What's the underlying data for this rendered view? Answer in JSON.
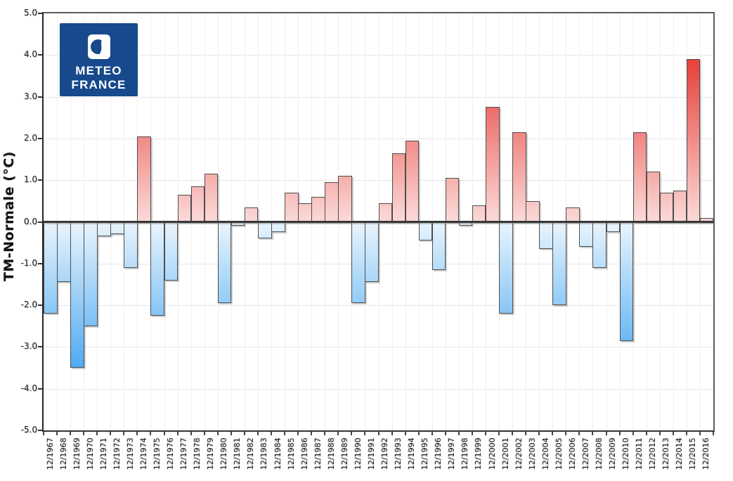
{
  "logo": {
    "line1": "METEO",
    "line2": "FRANCE",
    "bg_color": "#17498c"
  },
  "axis": {
    "y_title": "TM-Normale (°C)"
  },
  "chart_data": {
    "type": "bar",
    "title": "",
    "xlabel": "",
    "ylabel": "TM-Normale (°C)",
    "ylim": [
      -5.0,
      5.0
    ],
    "grid": "on",
    "legend": "none",
    "y_tick_labels": [
      "5.0",
      "4.0",
      "3.0",
      "2.0",
      "1.0",
      "0.0",
      "-1.0",
      "-2.0",
      "-3.0",
      "-4.0",
      "-5.0"
    ],
    "categories": [
      "12/1967",
      "12/1968",
      "12/1969",
      "12/1970",
      "12/1971",
      "12/1972",
      "12/1973",
      "12/1974",
      "12/1975",
      "12/1976",
      "12/1977",
      "12/1978",
      "12/1979",
      "12/1980",
      "12/1981",
      "12/1982",
      "12/1983",
      "12/1984",
      "12/1985",
      "12/1986",
      "12/1987",
      "12/1988",
      "12/1989",
      "12/1990",
      "12/1991",
      "12/1992",
      "12/1993",
      "12/1994",
      "12/1995",
      "12/1996",
      "12/1997",
      "12/1998",
      "12/1999",
      "12/2000",
      "12/2001",
      "12/2002",
      "12/2003",
      "12/2004",
      "12/2005",
      "12/2006",
      "12/2007",
      "12/2008",
      "12/2009",
      "12/2010",
      "12/2011",
      "12/2012",
      "12/2013",
      "12/2014",
      "12/2015",
      "12/2016"
    ],
    "values": [
      -2.2,
      -1.45,
      -3.5,
      -2.5,
      -0.35,
      -0.3,
      -1.1,
      2.05,
      -2.25,
      -1.4,
      0.65,
      0.85,
      1.15,
      -1.95,
      -0.1,
      0.35,
      -0.4,
      -0.25,
      0.7,
      0.45,
      0.6,
      0.95,
      1.1,
      -1.95,
      -1.45,
      0.45,
      1.65,
      1.95,
      -0.45,
      -1.15,
      1.05,
      -0.1,
      0.4,
      2.75,
      -2.2,
      2.15,
      0.5,
      -0.65,
      -2.0,
      0.35,
      -0.6,
      -1.1,
      -0.25,
      -2.85,
      2.15,
      1.2,
      0.7,
      0.75,
      3.9,
      0.1
    ],
    "colors": {
      "positive_strong": "#e63c36",
      "positive_light": "#fbdad8",
      "negative_strong": "#39a1f0",
      "negative_light": "#e9f4fd",
      "bar_border": "#4d4d4d",
      "zero_line": "#383838",
      "color_scale_max": 4.0
    }
  }
}
